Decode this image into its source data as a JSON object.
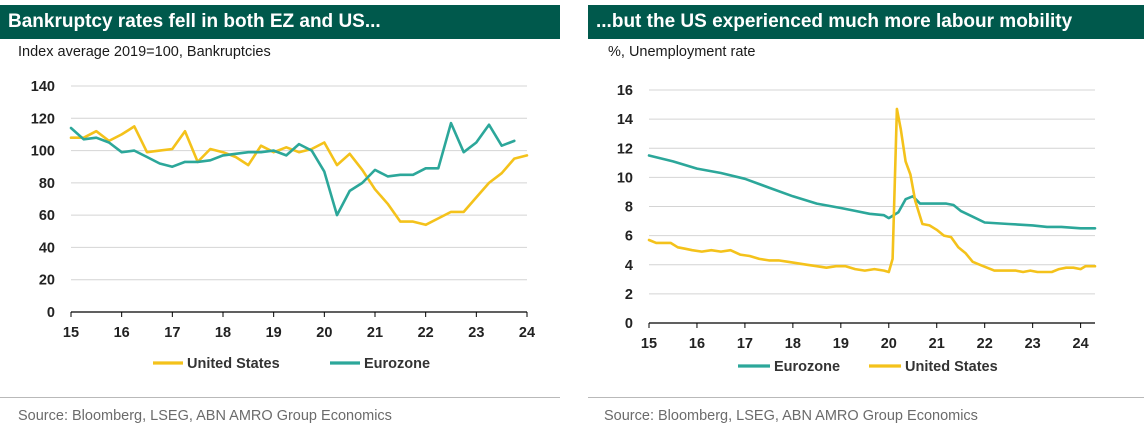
{
  "colors": {
    "header_bg": "#00594c",
    "us": "#f4c21b",
    "ez": "#2ca79a",
    "grid": "#d4d4d4",
    "axis": "#000000"
  },
  "left": {
    "title": "Bankruptcy rates fell in both EZ and US...",
    "subtitle": "Index average 2019=100, Bankruptcies",
    "source": "Source: Bloomberg, LSEG, ABN AMRO Group Economics"
  },
  "right": {
    "title": "...but the US experienced much more labour mobility",
    "subtitle": "%, Unemployment rate",
    "source": "Source: Bloomberg, LSEG, ABN AMRO Group Economics"
  },
  "chart_data": [
    {
      "type": "line",
      "title": "Bankruptcy rates fell in both EZ and US...",
      "subtitle": "Index average 2019=100, Bankruptcies",
      "xlim": [
        15,
        24
      ],
      "x_ticks": [
        "15",
        "16",
        "17",
        "18",
        "19",
        "20",
        "21",
        "22",
        "23",
        "24"
      ],
      "ylim": [
        0,
        140
      ],
      "y_ticks": [
        "0",
        "20",
        "40",
        "60",
        "80",
        "100",
        "120",
        "140"
      ],
      "grid": "horizontal",
      "legend_position": "bottom",
      "legend": [
        "United States",
        "Eurozone"
      ],
      "series": [
        {
          "name": "United States",
          "color": "#f4c21b",
          "x": [
            15.0,
            15.25,
            15.5,
            15.75,
            16.0,
            16.25,
            16.5,
            16.75,
            17.0,
            17.25,
            17.5,
            17.75,
            18.0,
            18.25,
            18.5,
            18.75,
            19.0,
            19.25,
            19.5,
            19.75,
            20.0,
            20.25,
            20.5,
            20.75,
            21.0,
            21.25,
            21.5,
            21.75,
            22.0,
            22.25,
            22.5,
            22.75,
            23.0,
            23.25,
            23.5,
            23.75,
            24.0
          ],
          "y": [
            108,
            108,
            112,
            106,
            110,
            115,
            99,
            100,
            101,
            112,
            93,
            101,
            99,
            96,
            91,
            103,
            99,
            102,
            99,
            101,
            105,
            91,
            98,
            88,
            76,
            67,
            56,
            56,
            54,
            58,
            62,
            62,
            71,
            80,
            86,
            95,
            97
          ]
        },
        {
          "name": "Eurozone",
          "color": "#2ca79a",
          "x": [
            15.0,
            15.25,
            15.5,
            15.75,
            16.0,
            16.25,
            16.5,
            16.75,
            17.0,
            17.25,
            17.5,
            17.75,
            18.0,
            18.25,
            18.5,
            18.75,
            19.0,
            19.25,
            19.5,
            19.75,
            20.0,
            20.25,
            20.5,
            20.75,
            21.0,
            21.25,
            21.5,
            21.75,
            22.0,
            22.25,
            22.5,
            22.75,
            23.0,
            23.25,
            23.5,
            23.75
          ],
          "y": [
            114,
            107,
            108,
            105,
            99,
            100,
            96,
            92,
            90,
            93,
            93,
            94,
            97,
            98,
            99,
            99,
            100,
            97,
            104,
            100,
            87,
            60,
            75,
            80,
            88,
            84,
            85,
            85,
            89,
            89,
            117,
            99,
            105,
            116,
            103,
            106
          ]
        }
      ]
    },
    {
      "type": "line",
      "title": "...but the US experienced much more labour mobility",
      "subtitle": "%, Unemployment rate",
      "xlim": [
        15,
        24.3
      ],
      "x_ticks": [
        "15",
        "16",
        "17",
        "18",
        "19",
        "20",
        "21",
        "22",
        "23",
        "24"
      ],
      "ylim": [
        0,
        16
      ],
      "y_ticks": [
        "0",
        "2",
        "4",
        "6",
        "8",
        "10",
        "12",
        "14",
        "16"
      ],
      "grid": "horizontal",
      "legend_position": "bottom",
      "legend": [
        "Eurozone",
        "United States"
      ],
      "series": [
        {
          "name": "Eurozone",
          "color": "#2ca79a",
          "x": [
            15.0,
            15.5,
            16.0,
            16.5,
            17.0,
            17.5,
            18.0,
            18.5,
            19.0,
            19.3,
            19.6,
            19.9,
            20.0,
            20.2,
            20.35,
            20.5,
            20.65,
            20.8,
            21.0,
            21.2,
            21.35,
            21.5,
            21.75,
            22.0,
            22.5,
            23.0,
            23.3,
            23.6,
            24.0,
            24.3
          ],
          "y": [
            11.5,
            11.1,
            10.6,
            10.3,
            9.9,
            9.3,
            8.7,
            8.2,
            7.9,
            7.7,
            7.5,
            7.4,
            7.2,
            7.6,
            8.5,
            8.7,
            8.2,
            8.2,
            8.2,
            8.2,
            8.1,
            7.7,
            7.3,
            6.9,
            6.8,
            6.7,
            6.6,
            6.6,
            6.5,
            6.5
          ]
        },
        {
          "name": "United States",
          "color": "#f4c21b",
          "x": [
            15.0,
            15.15,
            15.3,
            15.45,
            15.6,
            15.75,
            15.9,
            16.1,
            16.3,
            16.5,
            16.7,
            16.9,
            17.1,
            17.3,
            17.5,
            17.7,
            17.9,
            18.1,
            18.3,
            18.5,
            18.7,
            18.9,
            19.1,
            19.3,
            19.5,
            19.7,
            19.9,
            20.0,
            20.08,
            20.17,
            20.25,
            20.35,
            20.45,
            20.55,
            20.7,
            20.85,
            21.0,
            21.15,
            21.3,
            21.45,
            21.6,
            21.75,
            21.9,
            22.05,
            22.2,
            22.35,
            22.5,
            22.65,
            22.8,
            22.95,
            23.1,
            23.25,
            23.4,
            23.55,
            23.7,
            23.85,
            24.0,
            24.1,
            24.2,
            24.3
          ],
          "y": [
            5.7,
            5.5,
            5.5,
            5.5,
            5.2,
            5.1,
            5.0,
            4.9,
            5.0,
            4.9,
            5.0,
            4.7,
            4.6,
            4.4,
            4.3,
            4.3,
            4.2,
            4.1,
            4.0,
            3.9,
            3.8,
            3.9,
            3.9,
            3.7,
            3.6,
            3.7,
            3.6,
            3.5,
            4.4,
            14.7,
            13.3,
            11.1,
            10.2,
            8.4,
            6.8,
            6.7,
            6.4,
            6.0,
            5.9,
            5.2,
            4.8,
            4.2,
            4.0,
            3.8,
            3.6,
            3.6,
            3.6,
            3.6,
            3.5,
            3.6,
            3.5,
            3.5,
            3.5,
            3.7,
            3.8,
            3.8,
            3.7,
            3.9,
            3.9,
            3.9
          ]
        }
      ]
    }
  ]
}
